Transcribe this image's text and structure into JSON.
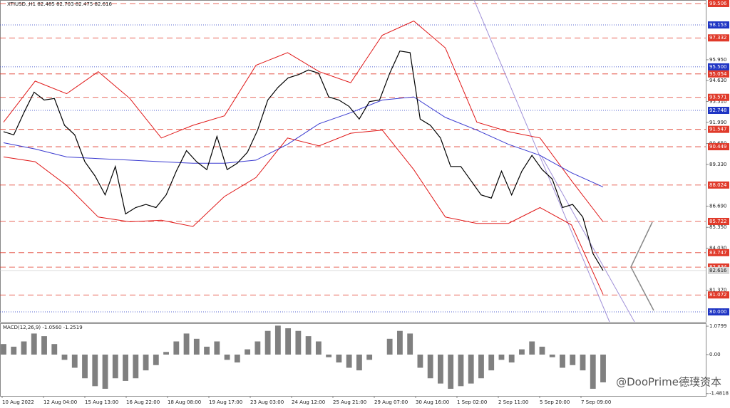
{
  "chart_data": {
    "type": "line",
    "title": "XTIUSD.,H1  82.485 82.703 82.475 82.616",
    "categories": [
      "10 Aug 2022",
      "12 Aug 04:00",
      "15 Aug 13:00",
      "16 Aug 22:00",
      "18 Aug 08:00",
      "19 Aug 17:00",
      "23 Aug 03:00",
      "24 Aug 12:00",
      "25 Aug 21:00",
      "29 Aug 07:00",
      "30 Aug 16:00",
      "1 Sep 02:00",
      "2 Sep 11:00",
      "5 Sep 20:00",
      "7 Sep 09:00"
    ],
    "ylim": [
      79.37,
      99.73
    ],
    "yticks": [
      {
        "value": 95.95,
        "label": "95.950"
      },
      {
        "value": 94.63,
        "label": "94.630"
      },
      {
        "value": 93.31,
        "label": "93.310"
      },
      {
        "value": 91.99,
        "label": "91.990"
      },
      {
        "value": 90.65,
        "label": "90.650"
      },
      {
        "value": 89.33,
        "label": "89.330"
      },
      {
        "value": 86.69,
        "label": "86.690"
      },
      {
        "value": 85.35,
        "label": "85.350"
      },
      {
        "value": 84.03,
        "label": "84.030"
      },
      {
        "value": 81.37,
        "label": "81.370"
      }
    ],
    "levels": [
      {
        "value": 99.506,
        "color": "#e03a2a"
      },
      {
        "value": 98.153,
        "color": "#1f35c4"
      },
      {
        "value": 97.332,
        "color": "#e03a2a"
      },
      {
        "value": 95.5,
        "label": "95.500",
        "color": "#1f35c4"
      },
      {
        "value": 95.054,
        "color": "#e03a2a"
      },
      {
        "value": 93.571,
        "color": "#e03a2a"
      },
      {
        "value": 92.748,
        "color": "#1f35c4"
      },
      {
        "value": 91.547,
        "color": "#e03a2a"
      },
      {
        "value": 90.449,
        "color": "#e03a2a"
      },
      {
        "value": 88.024,
        "color": "#e03a2a"
      },
      {
        "value": 85.722,
        "color": "#e03a2a"
      },
      {
        "value": 83.747,
        "color": "#e03a2a"
      },
      {
        "value": 82.834,
        "color": "#e03a2a"
      },
      {
        "value": 81.072,
        "color": "#e03a2a"
      },
      {
        "value": 80,
        "label": "80.000",
        "color": "#1f35c4"
      }
    ],
    "last_price": 82.616,
    "price": {
      "color": "#000000",
      "values": [
        91.4,
        91.2,
        92.6,
        93.9,
        93.4,
        93.5,
        91.8,
        91.2,
        89.5,
        88.6,
        87.4,
        89.2,
        86.2,
        86.6,
        86.8,
        86.6,
        87.4,
        88.9,
        90.2,
        89.5,
        89.0,
        91.1,
        89.0,
        89.4,
        90.1,
        91.5,
        93.4,
        94.2,
        94.8,
        95.0,
        95.3,
        95.1,
        93.6,
        93.4,
        93.0,
        92.2,
        93.3,
        93.4,
        95.1,
        96.5,
        96.4,
        92.2,
        91.8,
        91.0,
        89.2,
        89.2,
        88.3,
        87.4,
        87.2,
        88.9,
        87.4,
        88.9,
        89.9,
        89.0,
        88.4,
        86.6,
        86.8,
        86.0,
        83.7,
        82.616
      ]
    },
    "bands": [
      {
        "color": "#e01818",
        "values": [
          92.0,
          94.6,
          93.8,
          95.2,
          93.5,
          91.0,
          91.8,
          92.4,
          95.6,
          96.4,
          95.2,
          94.5,
          97.5,
          98.4,
          96.7,
          92.0,
          91.4,
          91.0,
          88.3,
          85.7
        ]
      },
      {
        "color": "#e01818",
        "values": [
          89.8,
          89.5,
          88.0,
          86.0,
          85.7,
          85.8,
          85.4,
          87.3,
          88.5,
          91.0,
          90.5,
          91.3,
          91.5,
          89.0,
          86.0,
          85.6,
          85.6,
          86.6,
          85.5,
          81.1
        ]
      },
      {
        "color": "#3a3ad0",
        "values": [
          90.7,
          90.3,
          89.8,
          89.7,
          89.6,
          89.5,
          89.4,
          89.4,
          89.6,
          90.6,
          91.9,
          92.6,
          93.4,
          93.6,
          92.3,
          91.5,
          90.6,
          89.9,
          88.8,
          87.9
        ]
      }
    ],
    "macd": {
      "title": "MACD(12,26,9) -1.0560 -1.2519",
      "ylim": [
        -1.57,
        1.19
      ],
      "yticks": [
        1.0799,
        {
          "value": 0,
          "label": "0.00"
        },
        -1.4818
      ],
      "color": "#808080",
      "values": [
        0.4,
        0.3,
        0.5,
        0.8,
        0.7,
        0.4,
        -0.2,
        -0.5,
        -0.9,
        -1.2,
        -1.3,
        -0.9,
        -1.0,
        -0.9,
        -0.6,
        -0.4,
        0.1,
        0.5,
        0.8,
        0.6,
        0.3,
        0.5,
        -0.2,
        -0.3,
        0.2,
        0.5,
        0.9,
        1.1,
        1.0,
        0.9,
        0.7,
        0.5,
        -0.1,
        -0.3,
        -0.5,
        -0.6,
        -0.2,
        0.0,
        0.6,
        0.9,
        0.8,
        -0.5,
        -0.9,
        -1.1,
        -1.3,
        -1.2,
        -1.1,
        -0.9,
        -0.6,
        -0.2,
        -0.3,
        0.2,
        0.5,
        0.3,
        -0.1,
        -0.5,
        -0.4,
        -0.6,
        -1.3,
        -1.056
      ]
    },
    "watermark": "@DooPrime德璞资本"
  }
}
